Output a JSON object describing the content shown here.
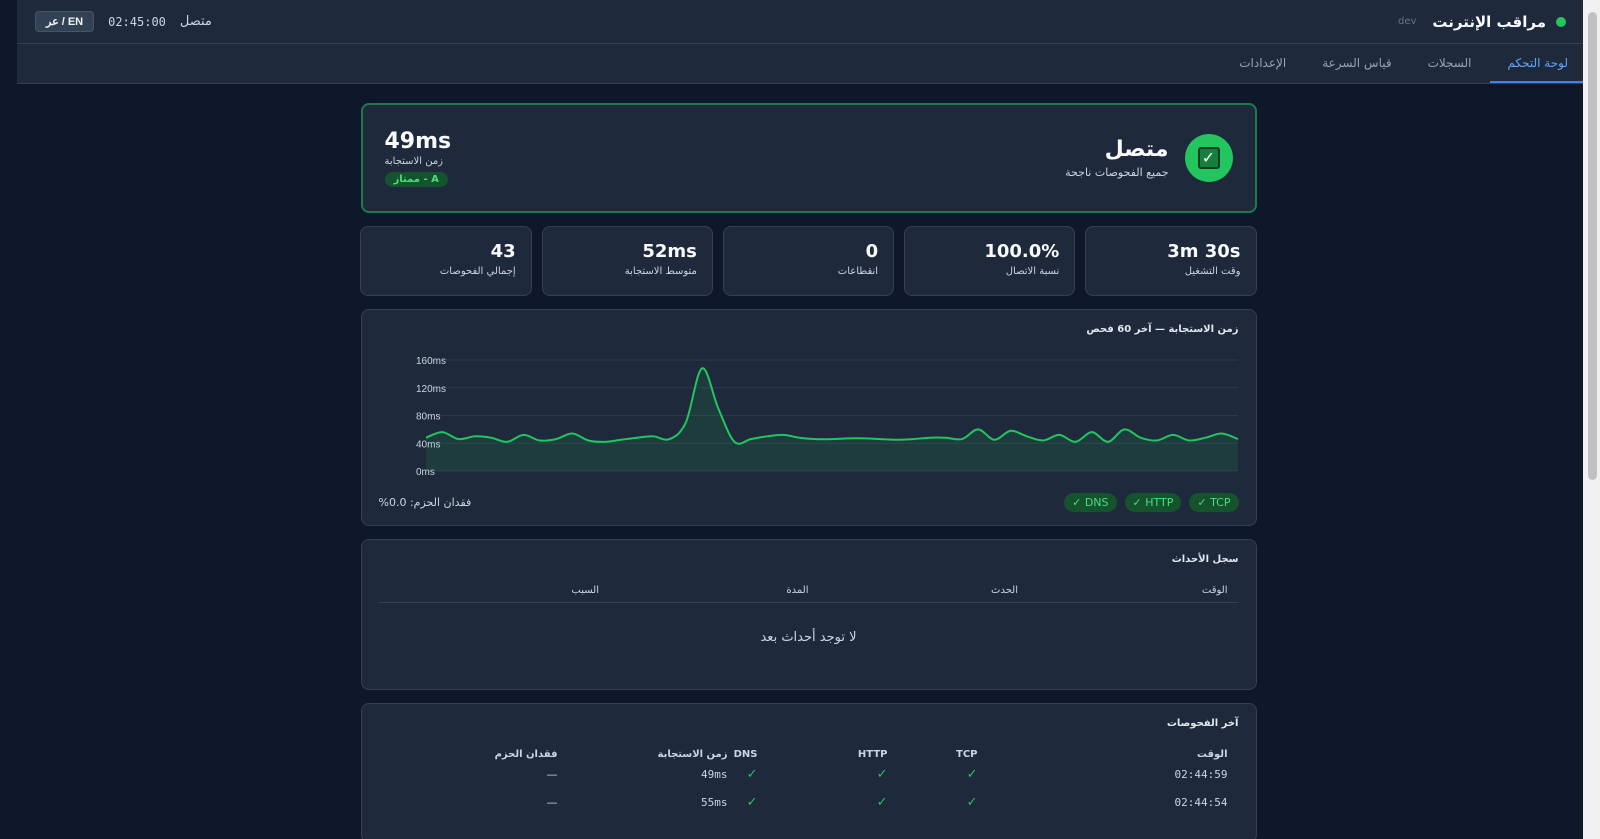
{
  "header": {
    "title": "مراقب الإنترنت",
    "env": "dev",
    "connection_status": "متصل",
    "clock": "02:45:00",
    "lang_toggle": "EN / عر"
  },
  "nav": {
    "tabs": [
      {
        "label": "لوحة التحكم",
        "active": true
      },
      {
        "label": "السجلات",
        "active": false
      },
      {
        "label": "قياس السرعة",
        "active": false
      },
      {
        "label": "الإعدادات",
        "active": false
      }
    ]
  },
  "status": {
    "title": "متصل",
    "subtitle": "جميع الفحوصات ناجحة",
    "latency_value": "49ms",
    "latency_label": "زمن الاستجابة",
    "grade": "A - ممتاز"
  },
  "stats": [
    {
      "value": "3m 30s",
      "label": "وقت التشغيل"
    },
    {
      "value": "100.0%",
      "label": "نسبة الاتصال"
    },
    {
      "value": "0",
      "label": "انقطاعات"
    },
    {
      "value": "52ms",
      "label": "متوسط الاستجابة"
    },
    {
      "value": "43",
      "label": "إجمالي الفحوصات"
    }
  ],
  "chart": {
    "title": "زمن الاستجابة — آخر 60 فحص",
    "pills": [
      "✓ TCP",
      "✓ HTTP",
      "✓ DNS"
    ],
    "packet_loss": "فقدان الحزم: 0.0%"
  },
  "chart_data": {
    "type": "area",
    "title": "زمن الاستجابة — آخر 60 فحص",
    "y_ticks": [
      "160ms",
      "120ms",
      "80ms",
      "40ms",
      "0ms"
    ],
    "ylim": [
      0,
      160
    ],
    "grid": true,
    "color": "#22c55e",
    "values": [
      48,
      56,
      46,
      50,
      48,
      42,
      52,
      44,
      46,
      54,
      44,
      42,
      45,
      48,
      50,
      46,
      70,
      148,
      90,
      42,
      46,
      50,
      52,
      48,
      46,
      46,
      47,
      47,
      46,
      45,
      46,
      48,
      48,
      46,
      60,
      45,
      58,
      50,
      44,
      52,
      42,
      56,
      42,
      60,
      48,
      44,
      52,
      44,
      48,
      54,
      46
    ]
  },
  "events": {
    "title": "سجل الأحداث",
    "columns": [
      "الوقت",
      "الحدث",
      "المدة",
      "السبب"
    ],
    "empty_text": "لا توجد أحداث بعد"
  },
  "checks": {
    "title": "آخر الفحوصات",
    "columns": [
      "الوقت",
      "TCP",
      "HTTP",
      "DNS",
      "زمن الاستجابة",
      "فقدان الحزم"
    ],
    "rows": [
      {
        "time": "02:44:59",
        "tcp": "✓",
        "http": "✓",
        "dns": "✓",
        "latency": "49ms",
        "loss": "—"
      },
      {
        "time": "02:44:54",
        "tcp": "✓",
        "http": "✓",
        "dns": "✓",
        "latency": "55ms",
        "loss": "—"
      }
    ]
  }
}
